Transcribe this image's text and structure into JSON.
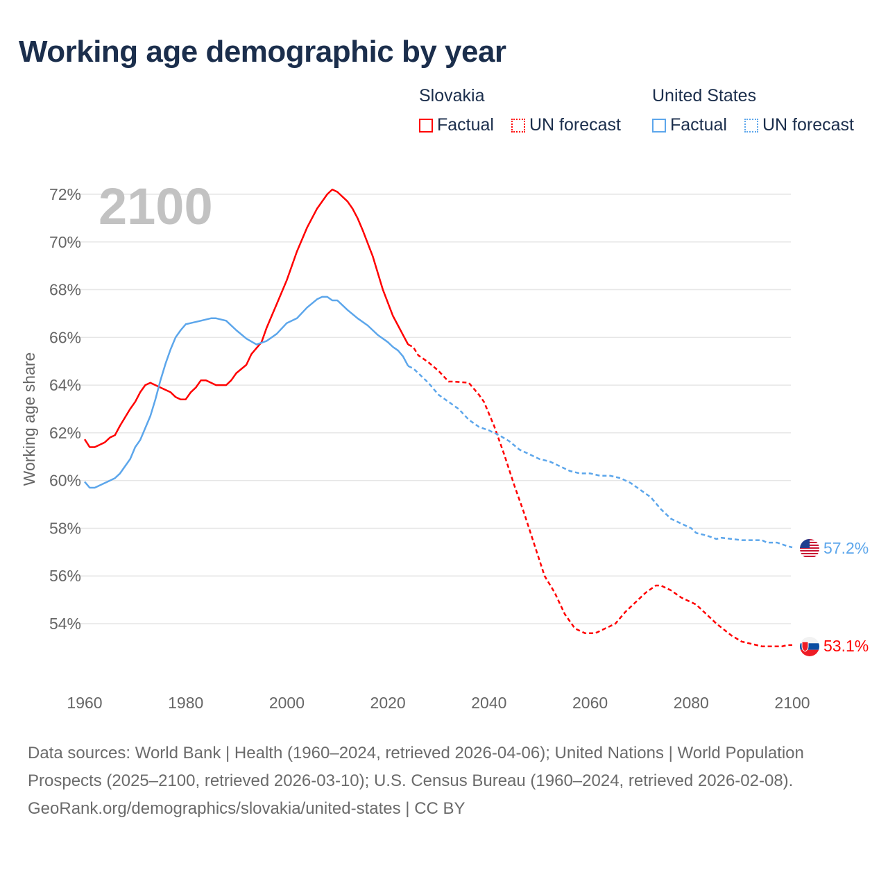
{
  "title": "Working age demographic by year",
  "legend": {
    "groups": [
      {
        "country": "Slovakia",
        "factual": "Factual",
        "forecast": "UN forecast",
        "color": "#ff0000"
      },
      {
        "country": "United States",
        "factual": "Factual",
        "forecast": "UN forecast",
        "color": "#5ca6eb"
      }
    ]
  },
  "source": {
    "line1": "Data sources: World Bank | Health (1960–2024, retrieved 2026-04-06); United Nations | World Population Prospects (2025–2100, retrieved 2026-03-10); U.S. Census Bureau (1960–2024, retrieved 2026-02-08).",
    "line2": "GeoRank.org/demographics/slovakia/united-states | CC BY"
  },
  "chart_data": {
    "type": "line",
    "title": "Working age demographic by year",
    "year_watermark": "2100",
    "xlabel": "",
    "ylabel": "Working age share",
    "xlim": [
      1960,
      2100
    ],
    "ylim": [
      52.5,
      72.5
    ],
    "x_ticks": [
      "1960",
      "1980",
      "2000",
      "2020",
      "2040",
      "2060",
      "2080",
      "2100"
    ],
    "y_ticks": [
      "54%",
      "56%",
      "58%",
      "60%",
      "62%",
      "64%",
      "66%",
      "68%",
      "70%",
      "72%"
    ],
    "grid": true,
    "legend_position": "top-right",
    "series": [
      {
        "name": "Slovakia",
        "color": "#ff0000",
        "end_label": "53.1%",
        "flag": "slovakia-flag",
        "factual": [
          [
            1960,
            61.73
          ],
          [
            1961,
            61.4
          ],
          [
            1962,
            61.4
          ],
          [
            1964,
            61.6
          ],
          [
            1965,
            61.8
          ],
          [
            1966,
            61.9
          ],
          [
            1967,
            62.3
          ],
          [
            1969,
            63.0
          ],
          [
            1970,
            63.3
          ],
          [
            1971,
            63.7
          ],
          [
            1972,
            64.0
          ],
          [
            1973,
            64.1
          ],
          [
            1976,
            63.8
          ],
          [
            1977,
            63.7
          ],
          [
            1978,
            63.5
          ],
          [
            1979,
            63.4
          ],
          [
            1980,
            63.4
          ],
          [
            1981,
            63.7
          ],
          [
            1982,
            63.9
          ],
          [
            1983,
            64.2
          ],
          [
            1984,
            64.2
          ],
          [
            1986,
            64.0
          ],
          [
            1988,
            64.0
          ],
          [
            1989,
            64.2
          ],
          [
            1990,
            64.5
          ],
          [
            1992,
            64.85
          ],
          [
            1993,
            65.3
          ],
          [
            1995,
            65.8
          ],
          [
            1996,
            66.4
          ],
          [
            1997,
            66.9
          ],
          [
            1998,
            67.4
          ],
          [
            2000,
            68.4
          ],
          [
            2002,
            69.6
          ],
          [
            2004,
            70.6
          ],
          [
            2006,
            71.4
          ],
          [
            2008,
            72.0
          ],
          [
            2009,
            72.2
          ],
          [
            2010,
            72.1
          ],
          [
            2012,
            71.7
          ],
          [
            2013,
            71.4
          ],
          [
            2014,
            71.0
          ],
          [
            2015,
            70.5
          ],
          [
            2017,
            69.4
          ],
          [
            2019,
            68.0
          ],
          [
            2021,
            66.9
          ],
          [
            2022,
            66.5
          ],
          [
            2023,
            66.1
          ],
          [
            2024,
            65.7
          ]
        ],
        "forecast": [
          [
            2024,
            65.7
          ],
          [
            2025,
            65.6
          ],
          [
            2026,
            65.25
          ],
          [
            2028,
            64.96
          ],
          [
            2030,
            64.6
          ],
          [
            2032,
            64.15
          ],
          [
            2033,
            64.15
          ],
          [
            2036,
            64.1
          ],
          [
            2038,
            63.6
          ],
          [
            2039,
            63.3
          ],
          [
            2041,
            62.3
          ],
          [
            2043,
            61.1
          ],
          [
            2045,
            59.8
          ],
          [
            2047,
            58.6
          ],
          [
            2049,
            57.3
          ],
          [
            2051,
            56.0
          ],
          [
            2053,
            55.3
          ],
          [
            2055,
            54.4
          ],
          [
            2057,
            53.8
          ],
          [
            2059,
            53.6
          ],
          [
            2061,
            53.6
          ],
          [
            2063,
            53.8
          ],
          [
            2065,
            54.0
          ],
          [
            2067,
            54.5
          ],
          [
            2069,
            54.9
          ],
          [
            2071,
            55.3
          ],
          [
            2073,
            55.6
          ],
          [
            2074,
            55.6
          ],
          [
            2076,
            55.4
          ],
          [
            2078,
            55.1
          ],
          [
            2081,
            54.8
          ],
          [
            2083,
            54.4
          ],
          [
            2085,
            54.0
          ],
          [
            2088,
            53.5
          ],
          [
            2090,
            53.25
          ],
          [
            2092,
            53.15
          ],
          [
            2094,
            53.05
          ],
          [
            2098,
            53.05
          ],
          [
            2099,
            53.1
          ],
          [
            2100,
            53.1
          ]
        ]
      },
      {
        "name": "United States",
        "color": "#5ca6eb",
        "end_label": "57.2%",
        "flag": "united-states-flag",
        "factual": [
          [
            1960,
            59.95
          ],
          [
            1961,
            59.7
          ],
          [
            1962,
            59.7
          ],
          [
            1965,
            60.0
          ],
          [
            1966,
            60.1
          ],
          [
            1967,
            60.3
          ],
          [
            1968,
            60.6
          ],
          [
            1969,
            60.9
          ],
          [
            1970,
            61.4
          ],
          [
            1971,
            61.7
          ],
          [
            1972,
            62.2
          ],
          [
            1973,
            62.7
          ],
          [
            1974,
            63.4
          ],
          [
            1975,
            64.2
          ],
          [
            1976,
            64.9
          ],
          [
            1977,
            65.5
          ],
          [
            1978,
            66.0
          ],
          [
            1979,
            66.3
          ],
          [
            1980,
            66.55
          ],
          [
            1981,
            66.6
          ],
          [
            1983,
            66.7
          ],
          [
            1985,
            66.8
          ],
          [
            1986,
            66.8
          ],
          [
            1988,
            66.7
          ],
          [
            1990,
            66.3
          ],
          [
            1992,
            65.95
          ],
          [
            1994,
            65.7
          ],
          [
            1996,
            65.85
          ],
          [
            1998,
            66.15
          ],
          [
            2000,
            66.6
          ],
          [
            2002,
            66.8
          ],
          [
            2004,
            67.25
          ],
          [
            2006,
            67.6
          ],
          [
            2007,
            67.7
          ],
          [
            2008,
            67.7
          ],
          [
            2009,
            67.55
          ],
          [
            2010,
            67.55
          ],
          [
            2012,
            67.15
          ],
          [
            2014,
            66.8
          ],
          [
            2016,
            66.5
          ],
          [
            2018,
            66.1
          ],
          [
            2020,
            65.8
          ],
          [
            2021,
            65.6
          ],
          [
            2022,
            65.45
          ],
          [
            2023,
            65.2
          ],
          [
            2024,
            64.8
          ]
        ],
        "forecast": [
          [
            2024,
            64.8
          ],
          [
            2025,
            64.7
          ],
          [
            2026,
            64.5
          ],
          [
            2028,
            64.1
          ],
          [
            2030,
            63.6
          ],
          [
            2032,
            63.3
          ],
          [
            2034,
            63.0
          ],
          [
            2036,
            62.55
          ],
          [
            2038,
            62.25
          ],
          [
            2040,
            62.1
          ],
          [
            2042,
            61.9
          ],
          [
            2044,
            61.65
          ],
          [
            2046,
            61.3
          ],
          [
            2048,
            61.1
          ],
          [
            2050,
            60.9
          ],
          [
            2052,
            60.8
          ],
          [
            2054,
            60.6
          ],
          [
            2056,
            60.4
          ],
          [
            2058,
            60.3
          ],
          [
            2060,
            60.3
          ],
          [
            2062,
            60.2
          ],
          [
            2064,
            60.2
          ],
          [
            2066,
            60.1
          ],
          [
            2068,
            59.9
          ],
          [
            2070,
            59.6
          ],
          [
            2072,
            59.3
          ],
          [
            2074,
            58.8
          ],
          [
            2076,
            58.4
          ],
          [
            2078,
            58.2
          ],
          [
            2080,
            58.0
          ],
          [
            2081,
            57.8
          ],
          [
            2083,
            57.7
          ],
          [
            2085,
            57.55
          ],
          [
            2086,
            57.6
          ],
          [
            2088,
            57.55
          ],
          [
            2090,
            57.5
          ],
          [
            2094,
            57.5
          ],
          [
            2095,
            57.4
          ],
          [
            2097,
            57.4
          ],
          [
            2099,
            57.25
          ],
          [
            2100,
            57.2
          ]
        ]
      }
    ]
  }
}
